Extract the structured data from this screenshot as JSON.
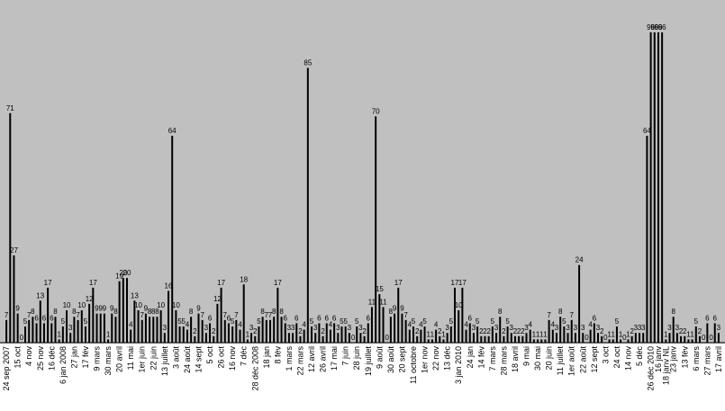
{
  "chart_data": {
    "type": "bar",
    "color": "#000000",
    "background": "#c0c0c0",
    "ylim": [
      0,
      106
    ],
    "values": [
      7,
      71,
      27,
      9,
      0,
      5,
      7,
      8,
      6,
      13,
      6,
      17,
      6,
      8,
      1,
      5,
      10,
      3,
      8,
      7,
      10,
      5,
      12,
      17,
      9,
      9,
      9,
      1,
      9,
      8,
      19,
      20,
      20,
      4,
      13,
      10,
      7,
      9,
      8,
      8,
      8,
      10,
      3,
      16,
      64,
      10,
      5,
      5,
      4,
      8,
      2,
      9,
      7,
      3,
      6,
      2,
      12,
      17,
      7,
      6,
      5,
      7,
      4,
      18,
      1,
      3,
      2,
      5,
      8,
      7,
      7,
      8,
      17,
      8,
      6,
      3,
      3,
      6,
      2,
      4,
      85,
      5,
      3,
      6,
      2,
      6,
      4,
      6,
      3,
      5,
      5,
      3,
      0,
      5,
      3,
      2,
      6,
      11,
      70,
      15,
      11,
      0,
      8,
      9,
      17,
      9,
      7,
      4,
      5,
      2,
      4,
      5,
      1,
      1,
      4,
      2,
      1,
      3,
      5,
      17,
      10,
      17,
      4,
      6,
      3,
      5,
      2,
      2,
      2,
      5,
      3,
      8,
      2,
      5,
      3,
      2,
      2,
      2,
      3,
      4,
      1,
      1,
      1,
      1,
      7,
      4,
      3,
      8,
      5,
      3,
      7,
      3,
      24,
      3,
      0,
      4,
      6,
      3,
      2,
      0,
      1,
      1,
      5,
      1,
      0,
      1,
      2,
      3,
      3,
      3,
      64,
      96,
      96,
      96,
      96,
      1,
      3,
      8,
      3,
      2,
      2,
      1,
      1,
      5,
      2,
      0,
      6,
      0,
      6,
      3
    ],
    "categories": [
      "24 sep 2007",
      null,
      null,
      "15 oct",
      null,
      null,
      "4 nov",
      null,
      null,
      "25 nov",
      null,
      null,
      "16 déc",
      null,
      null,
      "6 jan 2008",
      null,
      null,
      "27 jan",
      null,
      null,
      "17 fév",
      null,
      null,
      "9 mars",
      null,
      null,
      "30 mars",
      null,
      null,
      "20 avril",
      null,
      null,
      "11 mai",
      null,
      null,
      "1er juin",
      null,
      null,
      "22 juin",
      null,
      null,
      "13 juillet",
      null,
      null,
      "3 août",
      null,
      null,
      "24 août",
      null,
      null,
      "14 sept",
      null,
      null,
      "5 oct",
      null,
      null,
      "26 oct",
      null,
      null,
      "16 nov",
      null,
      null,
      "7 déc",
      null,
      null,
      "28 déc 2008",
      null,
      null,
      "18 jan",
      null,
      null,
      "8 fév",
      null,
      null,
      "1 mars",
      null,
      null,
      "22 mars",
      null,
      null,
      "12 avril",
      null,
      null,
      "26 avril",
      null,
      null,
      "17 mai",
      null,
      null,
      "7 juin",
      null,
      null,
      "28 juin",
      null,
      null,
      "19 juillet",
      null,
      null,
      "9 août",
      null,
      null,
      "30 août",
      null,
      null,
      "20 sept",
      null,
      null,
      "11 octobre",
      null,
      null,
      "1er nov",
      null,
      null,
      "22 nov",
      null,
      null,
      "13 déc",
      null,
      null,
      "3 jan 2010",
      null,
      null,
      "24 jan",
      null,
      null,
      "14 fév",
      null,
      null,
      "7 mars",
      null,
      null,
      "28 mars",
      null,
      null,
      "18 avril",
      null,
      null,
      "9 mai",
      null,
      null,
      "30 mai",
      null,
      null,
      "20 juin",
      null,
      null,
      "11 juillet",
      null,
      null,
      "1er août",
      null,
      null,
      "22 août",
      null,
      null,
      "12 sept",
      null,
      null,
      "3 oct",
      null,
      null,
      "24 oct",
      null,
      null,
      "14 nov",
      null,
      null,
      "5 déc",
      null,
      null,
      "26 déc 2010",
      null,
      "16 janv",
      null,
      "18 janv NL",
      null,
      "23 janv",
      null,
      null,
      "13 fév",
      null,
      null,
      "6 mars",
      null,
      null,
      "27 mars",
      null,
      null,
      "17 avril"
    ]
  }
}
